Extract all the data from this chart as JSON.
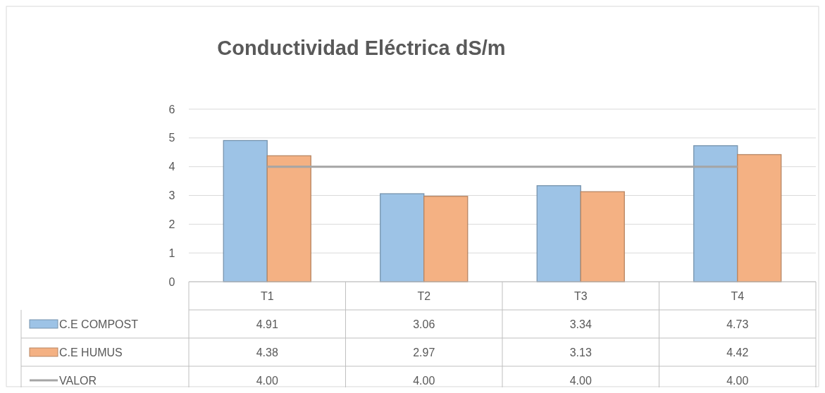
{
  "chart_data": {
    "type": "bar",
    "title": "Conductividad Eléctrica dS/m",
    "categories": [
      "T1",
      "T2",
      "T3",
      "T4"
    ],
    "series": [
      {
        "name": "C.E  COMPOST",
        "color": "#9dc3e6",
        "values": [
          4.91,
          3.06,
          3.34,
          4.73
        ],
        "value_labels": [
          "4.91",
          "3.06",
          "3.34",
          "4.73"
        ]
      },
      {
        "name": "C.E HUMUS",
        "color": "#f4b183",
        "values": [
          4.38,
          2.97,
          3.13,
          4.42
        ],
        "value_labels": [
          "4.38",
          "2.97",
          "3.13",
          "4.42"
        ]
      },
      {
        "name": "VALOR",
        "type": "line",
        "color": "#a5a5a5",
        "values": [
          4,
          4,
          4,
          4
        ],
        "value_labels": [
          "4.00",
          "4.00",
          "4.00",
          "4.00"
        ]
      }
    ],
    "ylim": [
      0,
      6
    ],
    "yticks": [
      0,
      1,
      2,
      3,
      4,
      5,
      6
    ],
    "grid": "y",
    "legend": "bottom"
  }
}
